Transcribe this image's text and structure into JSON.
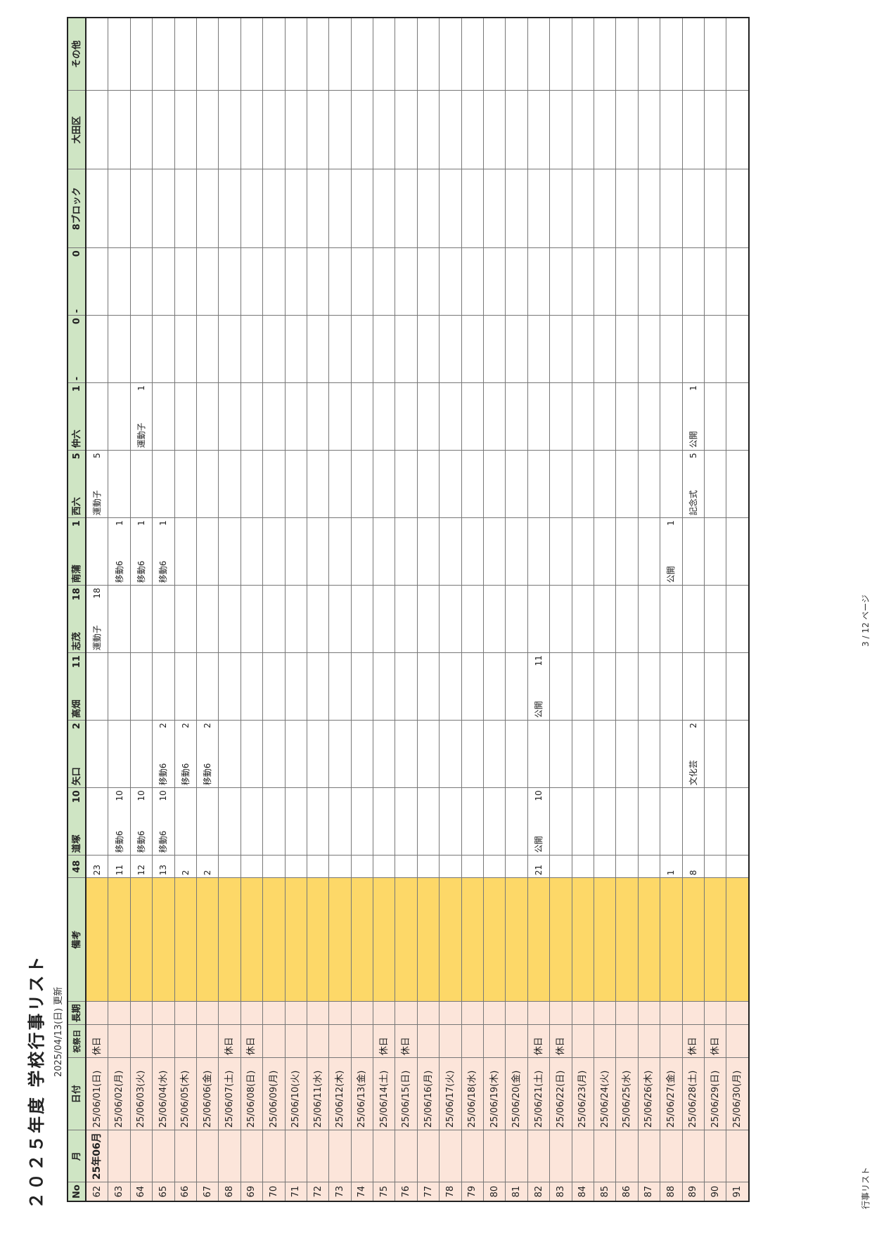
{
  "title": "２０２５年度 学校行事リスト",
  "updated": "2025/04/13(日) 更新",
  "footer": {
    "left": "行事リスト",
    "center": "3 / 12 ページ"
  },
  "headers": {
    "no": "No",
    "month": "月",
    "date": "日付",
    "holiday": "祝祭日",
    "long": "長期",
    "remarks": "備考",
    "total": "48",
    "schools": [
      {
        "name": "道塚",
        "count": "10"
      },
      {
        "name": "矢口",
        "count": "2"
      },
      {
        "name": "高畑",
        "count": "11"
      },
      {
        "name": "志茂",
        "count": "18"
      },
      {
        "name": "南蒲",
        "count": "1"
      },
      {
        "name": "西六",
        "count": "5"
      },
      {
        "name": "仲六",
        "count": "1"
      },
      {
        "name": "-",
        "count": "0"
      },
      {
        "name": "-",
        "count": "0"
      }
    ],
    "block": "8ブロック",
    "ward": "大田区",
    "other": "その他"
  },
  "rows": [
    {
      "no": "62",
      "month": "25年06月",
      "date": "25/06/01(日)",
      "holiday": "休日",
      "total": "23",
      "cells": [
        {
          "ev": "",
          "ct": ""
        },
        {
          "ev": "",
          "ct": ""
        },
        {
          "ev": "",
          "ct": ""
        },
        {
          "ev": "運動子",
          "ct": "18"
        },
        {
          "ev": "",
          "ct": ""
        },
        {
          "ev": "運動子",
          "ct": "5"
        },
        {
          "ev": "",
          "ct": ""
        },
        {
          "ev": "",
          "ct": ""
        },
        {
          "ev": "",
          "ct": ""
        }
      ]
    },
    {
      "no": "63",
      "month": "",
      "date": "25/06/02(月)",
      "holiday": "",
      "total": "11",
      "cells": [
        {
          "ev": "移動6",
          "ct": "10"
        },
        {
          "ev": "",
          "ct": ""
        },
        {
          "ev": "",
          "ct": ""
        },
        {
          "ev": "",
          "ct": ""
        },
        {
          "ev": "移動6",
          "ct": "1"
        },
        {
          "ev": "",
          "ct": ""
        },
        {
          "ev": "",
          "ct": ""
        },
        {
          "ev": "",
          "ct": ""
        },
        {
          "ev": "",
          "ct": ""
        }
      ]
    },
    {
      "no": "64",
      "month": "",
      "date": "25/06/03(火)",
      "holiday": "",
      "total": "12",
      "cells": [
        {
          "ev": "移動6",
          "ct": "10"
        },
        {
          "ev": "",
          "ct": ""
        },
        {
          "ev": "",
          "ct": ""
        },
        {
          "ev": "",
          "ct": ""
        },
        {
          "ev": "移動6",
          "ct": "1"
        },
        {
          "ev": "",
          "ct": ""
        },
        {
          "ev": "運動子",
          "ct": "1"
        },
        {
          "ev": "",
          "ct": ""
        },
        {
          "ev": "",
          "ct": ""
        }
      ]
    },
    {
      "no": "65",
      "month": "",
      "date": "25/06/04(水)",
      "holiday": "",
      "total": "13",
      "cells": [
        {
          "ev": "移動6",
          "ct": "10"
        },
        {
          "ev": "移動6",
          "ct": "2"
        },
        {
          "ev": "",
          "ct": ""
        },
        {
          "ev": "",
          "ct": ""
        },
        {
          "ev": "移動6",
          "ct": "1"
        },
        {
          "ev": "",
          "ct": ""
        },
        {
          "ev": "",
          "ct": ""
        },
        {
          "ev": "",
          "ct": ""
        },
        {
          "ev": "",
          "ct": ""
        }
      ]
    },
    {
      "no": "66",
      "month": "",
      "date": "25/06/05(木)",
      "holiday": "",
      "total": "2",
      "cells": [
        {
          "ev": "",
          "ct": ""
        },
        {
          "ev": "移動6",
          "ct": "2"
        },
        {
          "ev": "",
          "ct": ""
        },
        {
          "ev": "",
          "ct": ""
        },
        {
          "ev": "",
          "ct": ""
        },
        {
          "ev": "",
          "ct": ""
        },
        {
          "ev": "",
          "ct": ""
        },
        {
          "ev": "",
          "ct": ""
        },
        {
          "ev": "",
          "ct": ""
        }
      ]
    },
    {
      "no": "67",
      "month": "",
      "date": "25/06/06(金)",
      "holiday": "",
      "total": "2",
      "cells": [
        {
          "ev": "",
          "ct": ""
        },
        {
          "ev": "移動6",
          "ct": "2"
        },
        {
          "ev": "",
          "ct": ""
        },
        {
          "ev": "",
          "ct": ""
        },
        {
          "ev": "",
          "ct": ""
        },
        {
          "ev": "",
          "ct": ""
        },
        {
          "ev": "",
          "ct": ""
        },
        {
          "ev": "",
          "ct": ""
        },
        {
          "ev": "",
          "ct": ""
        }
      ]
    },
    {
      "no": "68",
      "month": "",
      "date": "25/06/07(土)",
      "holiday": "休日",
      "total": "",
      "cells": []
    },
    {
      "no": "69",
      "month": "",
      "date": "25/06/08(日)",
      "holiday": "休日",
      "total": "",
      "cells": []
    },
    {
      "no": "70",
      "month": "",
      "date": "25/06/09(月)",
      "holiday": "",
      "total": "",
      "cells": []
    },
    {
      "no": "71",
      "month": "",
      "date": "25/06/10(火)",
      "holiday": "",
      "total": "",
      "cells": []
    },
    {
      "no": "72",
      "month": "",
      "date": "25/06/11(水)",
      "holiday": "",
      "total": "",
      "cells": []
    },
    {
      "no": "73",
      "month": "",
      "date": "25/06/12(木)",
      "holiday": "",
      "total": "",
      "cells": []
    },
    {
      "no": "74",
      "month": "",
      "date": "25/06/13(金)",
      "holiday": "",
      "total": "",
      "cells": []
    },
    {
      "no": "75",
      "month": "",
      "date": "25/06/14(土)",
      "holiday": "休日",
      "total": "",
      "cells": []
    },
    {
      "no": "76",
      "month": "",
      "date": "25/06/15(日)",
      "holiday": "休日",
      "total": "",
      "cells": []
    },
    {
      "no": "77",
      "month": "",
      "date": "25/06/16(月)",
      "holiday": "",
      "total": "",
      "cells": []
    },
    {
      "no": "78",
      "month": "",
      "date": "25/06/17(火)",
      "holiday": "",
      "total": "",
      "cells": []
    },
    {
      "no": "79",
      "month": "",
      "date": "25/06/18(水)",
      "holiday": "",
      "total": "",
      "cells": []
    },
    {
      "no": "80",
      "month": "",
      "date": "25/06/19(木)",
      "holiday": "",
      "total": "",
      "cells": []
    },
    {
      "no": "81",
      "month": "",
      "date": "25/06/20(金)",
      "holiday": "",
      "total": "",
      "cells": []
    },
    {
      "no": "82",
      "month": "",
      "date": "25/06/21(土)",
      "holiday": "休日",
      "total": "21",
      "cells": [
        {
          "ev": "公開",
          "ct": "10"
        },
        {
          "ev": "",
          "ct": ""
        },
        {
          "ev": "公開",
          "ct": "11"
        },
        {
          "ev": "",
          "ct": ""
        },
        {
          "ev": "",
          "ct": ""
        },
        {
          "ev": "",
          "ct": ""
        },
        {
          "ev": "",
          "ct": ""
        },
        {
          "ev": "",
          "ct": ""
        },
        {
          "ev": "",
          "ct": ""
        }
      ]
    },
    {
      "no": "83",
      "month": "",
      "date": "25/06/22(日)",
      "holiday": "休日",
      "total": "",
      "cells": []
    },
    {
      "no": "84",
      "month": "",
      "date": "25/06/23(月)",
      "holiday": "",
      "total": "",
      "cells": []
    },
    {
      "no": "85",
      "month": "",
      "date": "25/06/24(火)",
      "holiday": "",
      "total": "",
      "cells": []
    },
    {
      "no": "86",
      "month": "",
      "date": "25/06/25(水)",
      "holiday": "",
      "total": "",
      "cells": []
    },
    {
      "no": "87",
      "month": "",
      "date": "25/06/26(木)",
      "holiday": "",
      "total": "",
      "cells": []
    },
    {
      "no": "88",
      "month": "",
      "date": "25/06/27(金)",
      "holiday": "",
      "total": "1",
      "cells": [
        {
          "ev": "",
          "ct": ""
        },
        {
          "ev": "",
          "ct": ""
        },
        {
          "ev": "",
          "ct": ""
        },
        {
          "ev": "",
          "ct": ""
        },
        {
          "ev": "公開",
          "ct": "1"
        },
        {
          "ev": "",
          "ct": ""
        },
        {
          "ev": "",
          "ct": ""
        },
        {
          "ev": "",
          "ct": ""
        },
        {
          "ev": "",
          "ct": ""
        }
      ]
    },
    {
      "no": "89",
      "month": "",
      "date": "25/06/28(土)",
      "holiday": "休日",
      "total": "8",
      "cells": [
        {
          "ev": "",
          "ct": ""
        },
        {
          "ev": "文化芸",
          "ct": "2"
        },
        {
          "ev": "",
          "ct": ""
        },
        {
          "ev": "",
          "ct": ""
        },
        {
          "ev": "",
          "ct": ""
        },
        {
          "ev": "記念式",
          "ct": "5"
        },
        {
          "ev": "公開",
          "ct": "1"
        },
        {
          "ev": "",
          "ct": ""
        },
        {
          "ev": "",
          "ct": ""
        }
      ]
    },
    {
      "no": "90",
      "month": "",
      "date": "25/06/29(日)",
      "holiday": "休日",
      "total": "",
      "cells": []
    },
    {
      "no": "91",
      "month": "",
      "date": "25/06/30(月)",
      "holiday": "",
      "total": "",
      "cells": []
    }
  ]
}
